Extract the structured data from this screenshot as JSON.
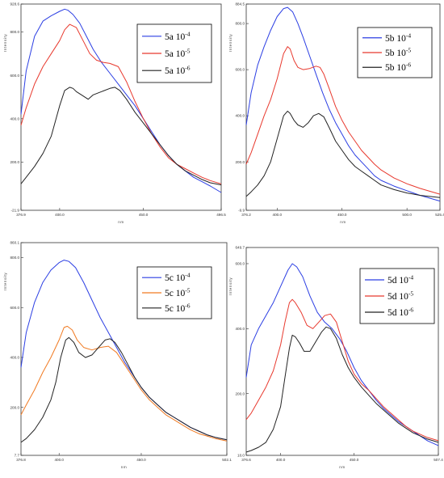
{
  "chart_data": [
    {
      "type": "line",
      "xlabel": "nm",
      "ylabel": "Intensity",
      "xlim": [
        376.9,
        496.5
      ],
      "ylim": [
        -21.9,
        928.6
      ],
      "x_tick_labels": [
        "376.9",
        "400.0",
        "450.0",
        "496.5"
      ],
      "y_tick_labels": [
        "-21.9",
        "200.0",
        "400.0",
        "600.0",
        "800.0",
        "928.6"
      ],
      "y_ticks": [
        -21.9,
        200,
        400,
        600,
        800,
        928.6
      ],
      "x_ticks": [
        376.9,
        400,
        450,
        496.5
      ],
      "legend_position": "top-right",
      "series": [
        {
          "name": "5a 10",
          "sup": "-4",
          "color": "#2b3ee3",
          "x": [
            376.9,
            380,
            385,
            390,
            395,
            400,
            403,
            405,
            408,
            412,
            416,
            420,
            425,
            430,
            435,
            440,
            445,
            450,
            455,
            460,
            465,
            470,
            475,
            480,
            485,
            490,
            496.5
          ],
          "y": [
            420,
            620,
            780,
            850,
            875,
            895,
            905,
            900,
            880,
            840,
            780,
            720,
            660,
            610,
            560,
            510,
            460,
            400,
            340,
            280,
            230,
            190,
            160,
            130,
            110,
            90,
            60
          ]
        },
        {
          "name": "5a 10",
          "sup": "-5",
          "color": "#e8392e",
          "x": [
            376.9,
            380,
            385,
            390,
            395,
            400,
            403,
            406,
            410,
            414,
            418,
            422,
            426,
            430,
            435,
            440,
            445,
            450,
            455,
            460,
            465,
            470,
            475,
            480,
            485,
            490,
            496.5
          ],
          "y": [
            370,
            450,
            560,
            640,
            700,
            760,
            810,
            835,
            820,
            760,
            700,
            670,
            660,
            655,
            640,
            570,
            480,
            400,
            330,
            270,
            220,
            190,
            170,
            150,
            130,
            115,
            100
          ]
        },
        {
          "name": "5a 10",
          "sup": "-6",
          "color": "#222222",
          "x": [
            376.9,
            380,
            385,
            390,
            395,
            400,
            403,
            406,
            408,
            410,
            413,
            417,
            420,
            425,
            430,
            433,
            436,
            440,
            445,
            450,
            455,
            460,
            465,
            470,
            475,
            480,
            485,
            490,
            496.5
          ],
          "y": [
            100,
            130,
            180,
            240,
            320,
            460,
            530,
            545,
            540,
            525,
            510,
            490,
            510,
            525,
            540,
            545,
            530,
            490,
            430,
            380,
            330,
            280,
            230,
            190,
            160,
            140,
            120,
            105,
            95
          ]
        }
      ]
    },
    {
      "type": "line",
      "xlabel": "nm",
      "ylabel": "Intensity",
      "xlim": [
        376.2,
        525.4
      ],
      "ylim": [
        -9.9,
        884.5
      ],
      "x_tick_labels": [
        "376.2",
        "400.0",
        "450.0",
        "500.0",
        "525.4"
      ],
      "y_tick_labels": [
        "-9.9",
        "200.0",
        "400.0",
        "600.0",
        "800.0",
        "884.5"
      ],
      "y_ticks": [
        -9.9,
        200,
        400,
        600,
        800,
        884.5
      ],
      "x_ticks": [
        376.2,
        400,
        450,
        500,
        525.4
      ],
      "legend_position": "top-right",
      "series": [
        {
          "name": "5b 10",
          "sup": "-4",
          "color": "#2b3ee3",
          "x": [
            376.2,
            380,
            385,
            390,
            395,
            400,
            405,
            408,
            412,
            416,
            420,
            425,
            430,
            435,
            440,
            445,
            450,
            455,
            460,
            465,
            470,
            475,
            480,
            490,
            500,
            510,
            525.4
          ],
          "y": [
            360,
            500,
            620,
            700,
            770,
            830,
            865,
            870,
            850,
            800,
            740,
            660,
            580,
            500,
            430,
            370,
            320,
            270,
            230,
            200,
            170,
            140,
            120,
            95,
            75,
            55,
            30
          ]
        },
        {
          "name": "5b 10",
          "sup": "-5",
          "color": "#e8392e",
          "x": [
            376.2,
            380,
            385,
            390,
            395,
            400,
            405,
            408,
            410,
            413,
            416,
            420,
            425,
            430,
            433,
            436,
            440,
            445,
            450,
            455,
            460,
            465,
            470,
            475,
            480,
            490,
            500,
            510,
            525.4
          ],
          "y": [
            190,
            240,
            320,
            400,
            470,
            560,
            670,
            700,
            690,
            640,
            610,
            600,
            605,
            615,
            610,
            580,
            520,
            440,
            380,
            330,
            290,
            250,
            220,
            190,
            165,
            130,
            105,
            85,
            60
          ]
        },
        {
          "name": "5b 10",
          "sup": "-6",
          "color": "#222222",
          "x": [
            376.2,
            380,
            385,
            390,
            395,
            400,
            405,
            408,
            410,
            413,
            416,
            420,
            424,
            428,
            432,
            436,
            440,
            445,
            450,
            455,
            460,
            465,
            470,
            475,
            480,
            490,
            500,
            510,
            525.4
          ],
          "y": [
            50,
            70,
            100,
            140,
            200,
            300,
            400,
            420,
            410,
            380,
            360,
            350,
            370,
            400,
            410,
            395,
            350,
            290,
            250,
            210,
            180,
            160,
            140,
            120,
            100,
            80,
            65,
            55,
            45
          ]
        }
      ]
    },
    {
      "type": "line",
      "xlabel": "nm",
      "ylabel": "Intensity",
      "xlim": [
        376.8,
        502.1
      ],
      "ylim": [
        7.7,
        860.1
      ],
      "x_tick_labels": [
        "376.8",
        "400.0",
        "450.0",
        "502.1"
      ],
      "y_tick_labels": [
        "7.7",
        "200.0",
        "400.0",
        "600.0",
        "800.0",
        "860.1"
      ],
      "y_ticks": [
        7.7,
        200,
        400,
        600,
        800,
        860.1
      ],
      "x_ticks": [
        376.8,
        400,
        450,
        502.1
      ],
      "legend_position": "top-right",
      "series": [
        {
          "name": "5c 10",
          "sup": "-4",
          "color": "#2b3ee3",
          "x": [
            376.8,
            380,
            385,
            390,
            395,
            400,
            403,
            406,
            410,
            415,
            420,
            425,
            430,
            435,
            440,
            445,
            450,
            455,
            460,
            465,
            470,
            475,
            480,
            485,
            490,
            495,
            502.1
          ],
          "y": [
            360,
            500,
            620,
            700,
            750,
            780,
            790,
            785,
            760,
            700,
            630,
            560,
            500,
            440,
            380,
            330,
            280,
            240,
            210,
            180,
            160,
            140,
            120,
            105,
            90,
            80,
            70
          ]
        },
        {
          "name": "5c 10",
          "sup": "-5",
          "color": "#f07a22",
          "x": [
            376.8,
            380,
            385,
            390,
            395,
            400,
            403,
            405,
            408,
            411,
            415,
            420,
            425,
            430,
            435,
            440,
            445,
            450,
            455,
            460,
            465,
            470,
            475,
            480,
            485,
            490,
            495,
            502.1
          ],
          "y": [
            170,
            210,
            270,
            340,
            400,
            470,
            520,
            525,
            510,
            470,
            440,
            430,
            440,
            445,
            420,
            370,
            320,
            270,
            230,
            200,
            170,
            150,
            130,
            110,
            95,
            85,
            75,
            65
          ]
        },
        {
          "name": "5c 10",
          "sup": "-6",
          "color": "#222222",
          "x": [
            376.8,
            380,
            385,
            390,
            395,
            398,
            401,
            404,
            406,
            409,
            412,
            416,
            420,
            424,
            428,
            431,
            434,
            438,
            442,
            446,
            450,
            455,
            460,
            465,
            470,
            475,
            480,
            485,
            490,
            495,
            502.1
          ],
          "y": [
            60,
            75,
            110,
            160,
            230,
            300,
            400,
            470,
            480,
            460,
            420,
            400,
            410,
            440,
            470,
            475,
            460,
            420,
            370,
            320,
            280,
            240,
            210,
            180,
            160,
            140,
            120,
            105,
            90,
            80,
            70
          ]
        }
      ]
    },
    {
      "type": "line",
      "xlabel": "nm",
      "ylabel": "Intensity",
      "xlim": [
        376.6,
        507.4
      ],
      "ylim": [
        10.0,
        649.7
      ],
      "x_tick_labels": [
        "376.6",
        "400.0",
        "450.0",
        "507.4"
      ],
      "y_tick_labels": [
        "10.0",
        "200.0",
        "400.0",
        "600.0",
        "649.7"
      ],
      "y_ticks": [
        10,
        200,
        400,
        600,
        649.7
      ],
      "x_ticks": [
        376.6,
        400,
        450,
        507.4
      ],
      "legend_position": "top-right",
      "series": [
        {
          "name": "5d 10",
          "sup": "-4",
          "color": "#2b3ee3",
          "x": [
            376.6,
            380,
            385,
            390,
            395,
            400,
            405,
            408,
            411,
            415,
            420,
            425,
            430,
            435,
            440,
            445,
            450,
            455,
            460,
            465,
            470,
            475,
            480,
            485,
            490,
            495,
            500,
            507.4
          ],
          "y": [
            250,
            350,
            400,
            440,
            480,
            530,
            580,
            600,
            590,
            560,
            500,
            450,
            420,
            400,
            370,
            330,
            280,
            240,
            210,
            180,
            155,
            135,
            115,
            100,
            85,
            70,
            55,
            40
          ]
        },
        {
          "name": "5d 10",
          "sup": "-5",
          "color": "#e8392e",
          "x": [
            376.6,
            380,
            385,
            390,
            395,
            400,
            403,
            406,
            408,
            410,
            414,
            418,
            422,
            426,
            430,
            434,
            438,
            442,
            446,
            450,
            455,
            460,
            465,
            470,
            475,
            480,
            485,
            490,
            495,
            500,
            507.4
          ],
          "y": [
            120,
            140,
            180,
            220,
            270,
            350,
            420,
            480,
            490,
            480,
            450,
            410,
            400,
            420,
            440,
            445,
            420,
            360,
            300,
            260,
            230,
            210,
            185,
            160,
            140,
            120,
            100,
            85,
            75,
            65,
            55
          ]
        },
        {
          "name": "5d 10",
          "sup": "-6",
          "color": "#222222",
          "x": [
            376.6,
            380,
            385,
            390,
            395,
            400,
            403,
            406,
            408,
            410,
            413,
            416,
            420,
            424,
            428,
            431,
            434,
            438,
            442,
            446,
            450,
            455,
            460,
            465,
            470,
            475,
            480,
            485,
            490,
            495,
            500,
            507.4
          ],
          "y": [
            20,
            25,
            35,
            50,
            90,
            160,
            250,
            340,
            380,
            375,
            355,
            330,
            330,
            360,
            390,
            405,
            400,
            370,
            320,
            280,
            250,
            220,
            195,
            170,
            150,
            130,
            110,
            95,
            80,
            70,
            60,
            50
          ]
        }
      ]
    }
  ]
}
